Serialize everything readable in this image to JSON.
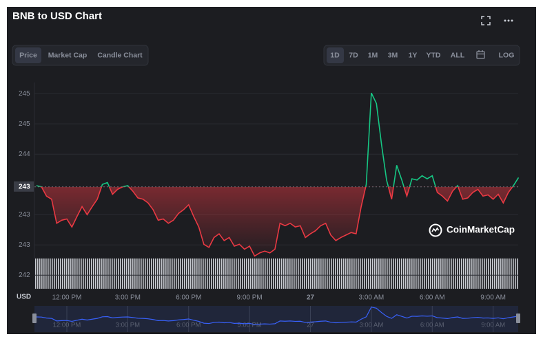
{
  "header": {
    "title": "BNB to USD Chart"
  },
  "tabs": [
    "Price",
    "Market Cap",
    "Candle Chart"
  ],
  "ranges": [
    "1D",
    "7D",
    "1M",
    "3M",
    "1Y",
    "YTD",
    "ALL"
  ],
  "log": "LOG",
  "watermark": "CoinMarketCap",
  "chart_data": {
    "type": "line",
    "currency_label": "USD",
    "categories": [
      null,
      null,
      null,
      null,
      null,
      null,
      "12:00 PM",
      null,
      null,
      null,
      null,
      null,
      null,
      null,
      null,
      null,
      null,
      null,
      "3:00 PM",
      null,
      null,
      null,
      null,
      null,
      null,
      null,
      null,
      null,
      null,
      null,
      "6:00 PM",
      null,
      null,
      null,
      null,
      null,
      null,
      null,
      null,
      null,
      null,
      null,
      "9:00 PM",
      null,
      null,
      null,
      null,
      null,
      null,
      null,
      null,
      null,
      null,
      null,
      "27",
      null,
      null,
      null,
      null,
      null,
      null,
      null,
      null,
      null,
      null,
      null,
      "3:00 AM",
      null,
      null,
      null,
      null,
      null,
      null,
      null,
      null,
      null,
      null,
      null,
      "6:00 AM",
      null,
      null,
      null,
      null,
      null,
      null,
      null,
      null,
      null,
      null,
      null,
      "9:00 AM",
      null,
      null,
      null,
      null,
      null
    ],
    "values": [
      243.5,
      243.48,
      243.33,
      243.28,
      242.89,
      242.94,
      242.96,
      242.83,
      243.0,
      243.16,
      243.03,
      243.16,
      243.28,
      243.52,
      243.55,
      243.36,
      243.44,
      243.48,
      243.5,
      243.41,
      243.3,
      243.28,
      243.22,
      243.11,
      242.94,
      242.96,
      242.89,
      242.94,
      243.05,
      243.11,
      243.19,
      243.0,
      242.83,
      242.55,
      242.5,
      242.66,
      242.72,
      242.61,
      242.66,
      242.52,
      242.55,
      242.47,
      242.52,
      242.36,
      242.41,
      242.44,
      242.41,
      242.47,
      242.89,
      242.85,
      242.89,
      242.83,
      242.85,
      242.66,
      242.72,
      242.77,
      242.85,
      242.89,
      242.7,
      242.61,
      242.66,
      242.7,
      242.74,
      242.72,
      243.16,
      243.52,
      245.0,
      244.83,
      244.17,
      243.59,
      243.28,
      243.83,
      243.59,
      243.33,
      243.61,
      243.59,
      243.66,
      243.61,
      243.66,
      243.39,
      243.33,
      243.25,
      243.41,
      243.5,
      243.28,
      243.3,
      243.39,
      243.44,
      243.33,
      243.35,
      243.28,
      243.36,
      243.22,
      243.39,
      243.5,
      243.63
    ],
    "reference": {
      "value": 243.48,
      "label": "243"
    },
    "colors": {
      "up": "#16c784",
      "down": "#ea3943",
      "navigator": "#3861fb"
    },
    "ylim": [
      241.83,
      245.17
    ],
    "yticks": [
      {
        "value": 244.99,
        "label": "245"
      },
      {
        "value": 244.5,
        "label": "245"
      },
      {
        "value": 244.01,
        "label": "244"
      },
      {
        "value": 243.03,
        "label": "243"
      },
      {
        "value": 242.54,
        "label": "243"
      },
      {
        "value": 242.05,
        "label": "242"
      }
    ],
    "grid": true
  }
}
